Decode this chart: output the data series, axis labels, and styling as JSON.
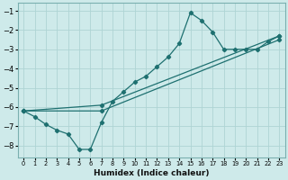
{
  "xlabel": "Humidex (Indice chaleur)",
  "xlim": [
    -0.5,
    23.5
  ],
  "ylim": [
    -8.6,
    -0.6
  ],
  "yticks": [
    -8,
    -7,
    -6,
    -5,
    -4,
    -3,
    -2,
    -1
  ],
  "xticks": [
    0,
    1,
    2,
    3,
    4,
    5,
    6,
    7,
    8,
    9,
    10,
    11,
    12,
    13,
    14,
    15,
    16,
    17,
    18,
    19,
    20,
    21,
    22,
    23
  ],
  "bg_color": "#ceeaea",
  "line_color": "#1e7070",
  "grid_color": "#aed4d4",
  "line1_x": [
    0,
    1,
    2,
    3,
    4,
    5,
    6,
    7,
    8,
    9,
    10,
    11,
    12,
    13,
    14,
    15,
    16,
    17,
    18,
    19,
    20,
    21,
    22,
    23
  ],
  "line1_y": [
    -6.2,
    -6.5,
    -6.9,
    -7.2,
    -7.4,
    -8.2,
    -8.2,
    -6.8,
    -5.7,
    -5.2,
    -4.7,
    -4.4,
    -3.9,
    -3.4,
    -2.7,
    -1.1,
    -1.5,
    -2.1,
    -3.0,
    -3.0,
    -3.0,
    -3.0,
    -2.6,
    -2.3
  ],
  "line2_x": [
    0,
    7,
    23
  ],
  "line2_y": [
    -6.2,
    -5.9,
    -2.3
  ],
  "line3_x": [
    0,
    7,
    23
  ],
  "line3_y": [
    -6.2,
    -6.2,
    -2.5
  ],
  "figsize": [
    3.2,
    2.0
  ],
  "dpi": 100
}
